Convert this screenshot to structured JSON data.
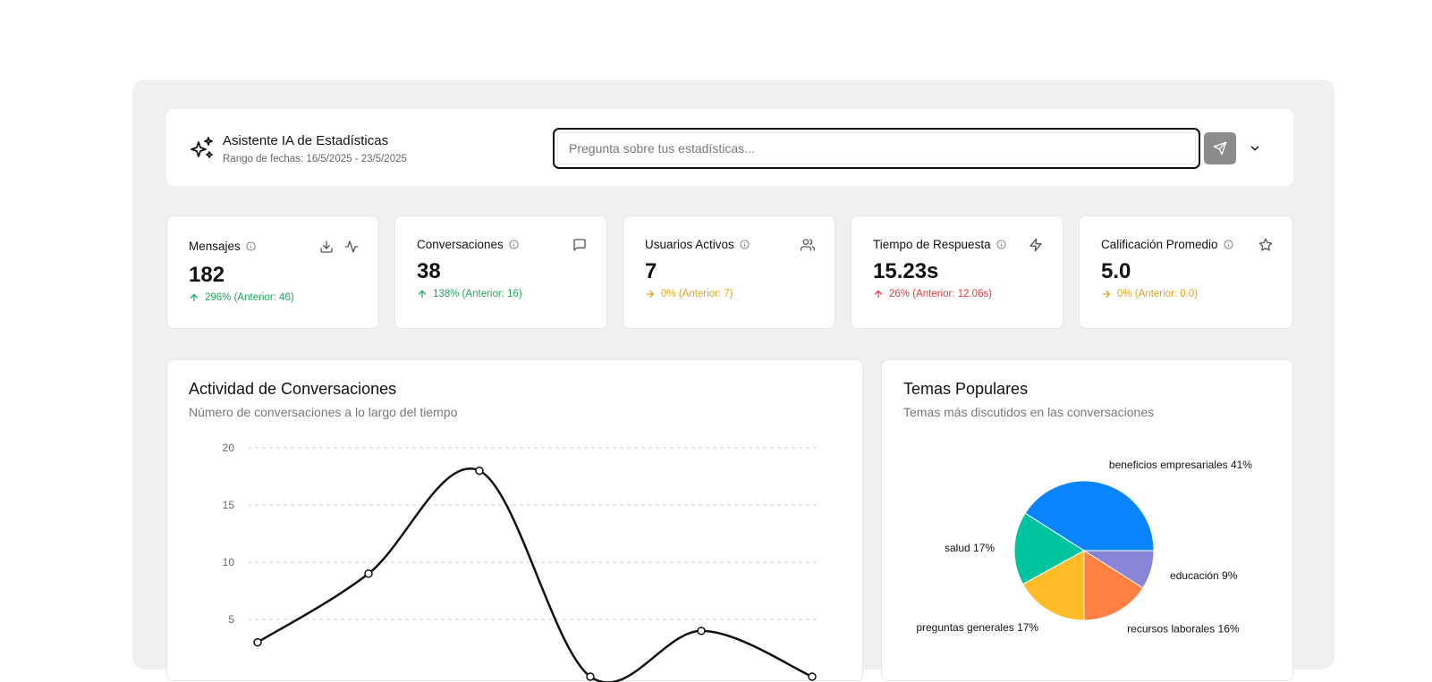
{
  "assistant": {
    "title": "Asistente IA de Estadísticas",
    "date_range": "Rango de fechas: 16/5/2025 - 23/5/2025",
    "search_placeholder": "Pregunta sobre tus estadísticas...",
    "icon": "sparkles-icon"
  },
  "metrics": [
    {
      "label": "Mensajes",
      "value": "182",
      "delta": "296% (Anterior: 46)",
      "trend": "up",
      "color": "#22a55a",
      "icons": [
        "download-icon",
        "activity-icon"
      ]
    },
    {
      "label": "Conversaciones",
      "value": "38",
      "delta": "138% (Anterior: 16)",
      "trend": "up",
      "color": "#22a55a",
      "icons": [
        "message-square-icon"
      ]
    },
    {
      "label": "Usuarios Activos",
      "value": "7",
      "delta": "0% (Anterior: 7)",
      "trend": "flat",
      "color": "#e3a21a",
      "icons": [
        "users-icon"
      ]
    },
    {
      "label": "Tiempo de Respuesta",
      "value": "15.23s",
      "delta": "26% (Anterior: 12.06s)",
      "trend": "up",
      "color": "#e23b3b",
      "icons": [
        "zap-icon"
      ]
    },
    {
      "label": "Calificación Promedio",
      "value": "5.0",
      "delta": "0% (Anterior: 0.0)",
      "trend": "flat",
      "color": "#e3a21a",
      "icons": [
        "star-icon"
      ]
    }
  ],
  "activity": {
    "title": "Actividad de Conversaciones",
    "subtitle": "Número de conversaciones a lo largo del tiempo"
  },
  "topics": {
    "title": "Temas Populares",
    "subtitle": "Temas más discutidos en las conversaciones"
  },
  "chart_data": [
    {
      "type": "line",
      "title": "Actividad de Conversaciones",
      "x": [
        1,
        2,
        3,
        4,
        5,
        6
      ],
      "values": [
        3,
        9,
        18,
        0,
        4,
        0
      ],
      "ylim": [
        0,
        20
      ],
      "yticks": [
        5,
        10,
        15,
        20
      ],
      "grid": true,
      "line_color": "#111111"
    },
    {
      "type": "pie",
      "title": "Temas Populares",
      "slices": [
        {
          "label": "beneficios empresariales 41%",
          "value": 41,
          "color": "#0a84ff"
        },
        {
          "label": "educación 9%",
          "value": 9,
          "color": "#8884d8"
        },
        {
          "label": "recursos laborales 16%",
          "value": 16,
          "color": "#ff8042"
        },
        {
          "label": "preguntas generales 17%",
          "value": 17,
          "color": "#ffbb28"
        },
        {
          "label": "salud 17%",
          "value": 17,
          "color": "#00c49f"
        }
      ]
    }
  ]
}
